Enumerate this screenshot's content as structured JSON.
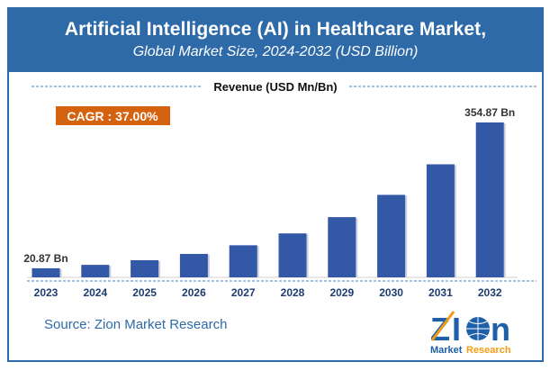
{
  "header": {
    "title": "Artificial Intelligence (AI) in Healthcare Market,",
    "subtitle": "Global Market Size, 2024-2032 (USD Billion)"
  },
  "cagr_label": "CAGR : 37.00%",
  "source": "Source: Zion Market Research",
  "logo": {
    "text_main": "Zion",
    "text_sub_1": "Market",
    "text_sub_2": "Research"
  },
  "colors": {
    "header": "#2e6aa8",
    "bar": "#3358a6",
    "cagr": "#d4620f",
    "axis_label": "#1f3b70"
  },
  "chart_data": {
    "type": "bar",
    "title": "Revenue (USD Mn/Bn)",
    "categories": [
      "2023",
      "2024",
      "2025",
      "2026",
      "2027",
      "2028",
      "2029",
      "2030",
      "2031",
      "2032"
    ],
    "values": [
      20.87,
      28.6,
      39.2,
      53.7,
      73.5,
      100.7,
      138,
      189,
      259,
      354.87
    ],
    "data_labels": {
      "0": "20.87 Bn",
      "9": "354.87 Bn"
    },
    "ylim": [
      0,
      360
    ],
    "grid": false,
    "legend": "none"
  }
}
